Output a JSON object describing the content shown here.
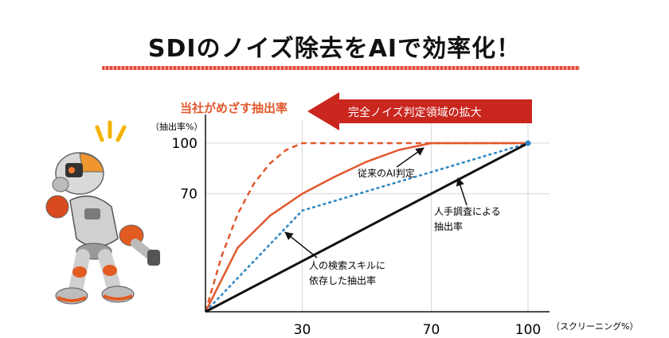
{
  "page": {
    "title": "SDIのノイズ除去をAIで効率化！"
  },
  "chart_data": {
    "type": "line",
    "xlabel": "（スクリーニング%）",
    "ylabel": "（抽出率%）",
    "xlim": [
      0,
      100
    ],
    "ylim": [
      0,
      100
    ],
    "x_ticks": [
      30,
      70,
      100
    ],
    "y_ticks": [
      70,
      100
    ],
    "grid": true,
    "series": [
      {
        "name": "当社がめざす抽出率",
        "style": "dashed",
        "color": "#e2582d",
        "points": [
          [
            0,
            0
          ],
          [
            5,
            33
          ],
          [
            10,
            58
          ],
          [
            15,
            76
          ],
          [
            20,
            88
          ],
          [
            25,
            96
          ],
          [
            30,
            100
          ],
          [
            100,
            100
          ]
        ]
      },
      {
        "name": "従来のAI判定",
        "style": "solid",
        "color": "#e2582d",
        "points": [
          [
            0,
            0
          ],
          [
            10,
            38
          ],
          [
            20,
            57
          ],
          [
            30,
            70
          ],
          [
            40,
            80
          ],
          [
            50,
            89
          ],
          [
            60,
            96
          ],
          [
            70,
            100
          ],
          [
            100,
            100
          ]
        ]
      },
      {
        "name": "人の検索スキルに依存した抽出率",
        "style": "dashed",
        "color": "#2f86c4",
        "points": [
          [
            0,
            0
          ],
          [
            30,
            60
          ],
          [
            100,
            100
          ]
        ]
      },
      {
        "name": "人手調査による抽出率",
        "style": "solid",
        "color": "#111111",
        "points": [
          [
            0,
            0
          ],
          [
            100,
            100
          ]
        ]
      }
    ],
    "annotations": {
      "target_label": "当社がめざす抽出率",
      "arrow_banner": "完全ノイズ判定領域の拡大",
      "ai_label": "従来のAI判定",
      "manual_label_line1": "人手調査による",
      "manual_label_line2": "抽出率",
      "human_label_line1": "人の検索スキルに",
      "human_label_line2": "依存した抽出率"
    },
    "colors": {
      "orange": "#e2582d",
      "blue": "#2f86c4",
      "banner": "#c9261e",
      "grid": "#d8d8d8"
    }
  },
  "illustration": {
    "icon": "robot-icon"
  }
}
